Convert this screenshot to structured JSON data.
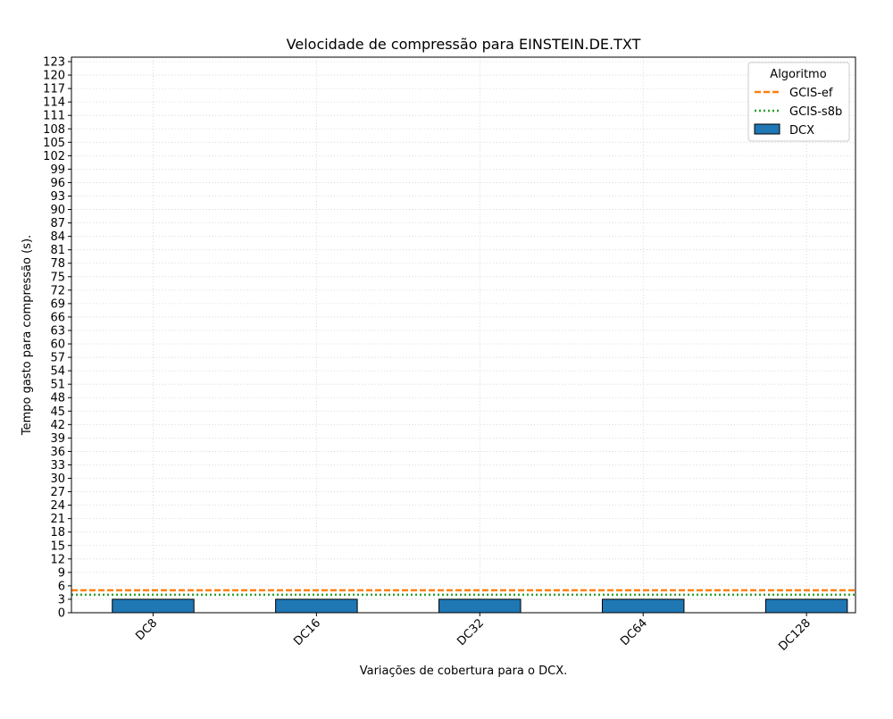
{
  "chart_data": {
    "type": "bar",
    "title": "Velocidade de compressão para  EINSTEIN.DE.TXT",
    "xlabel": "Variações de cobertura para o DCX.",
    "ylabel": "Tempo gasto para compressão (s).",
    "categories": [
      "DC8",
      "DC16",
      "DC32",
      "DC64",
      "DC128"
    ],
    "series": [
      {
        "name": "DCX",
        "type": "bar",
        "values": [
          3,
          3,
          3,
          3,
          3
        ],
        "color": "#1f77b4"
      }
    ],
    "reference_lines": [
      {
        "name": "GCIS-ef",
        "value": 5.0,
        "style": "dashed",
        "color": "#ff7f0e"
      },
      {
        "name": "GCIS-s8b",
        "value": 4.0,
        "style": "dotted",
        "color": "#2ca02c"
      }
    ],
    "ylim": [
      0,
      124
    ],
    "yticks": [
      0,
      3,
      6,
      9,
      12,
      15,
      18,
      21,
      24,
      27,
      30,
      33,
      36,
      39,
      42,
      45,
      48,
      51,
      54,
      57,
      60,
      63,
      66,
      69,
      72,
      75,
      78,
      81,
      84,
      87,
      90,
      93,
      96,
      99,
      102,
      105,
      108,
      111,
      114,
      117,
      120,
      123
    ],
    "grid": true,
    "legend": {
      "title": "Algoritmo",
      "position": "top-right",
      "entries": [
        "GCIS-ef",
        "GCIS-s8b",
        "DCX"
      ]
    }
  }
}
